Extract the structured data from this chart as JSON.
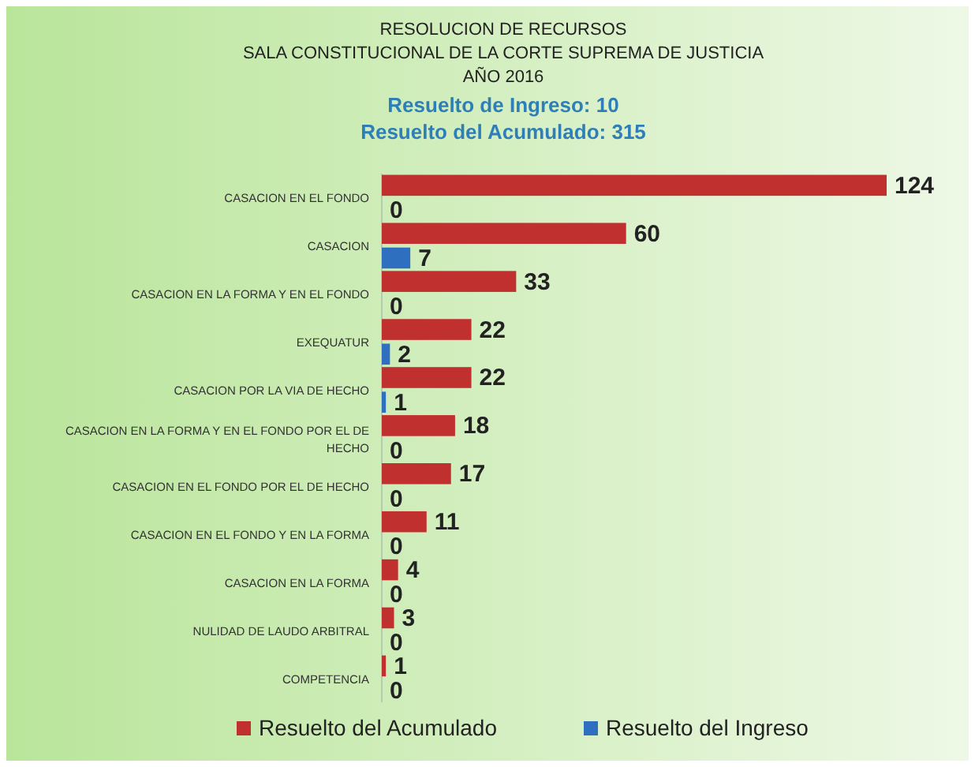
{
  "chart_data": {
    "type": "bar",
    "orientation": "horizontal",
    "title": "RESOLUCION DE RECURSOS\nSALA CONSTITUCIONAL DE LA CORTE SUPREMA DE JUSTICIA\nAÑO 2016",
    "subtitle": "Resuelto de Ingreso: 10\nResuelto del Acumulado: 315",
    "categories": [
      "CASACION EN EL FONDO",
      "CASACION",
      "CASACION EN LA FORMA Y EN EL FONDO",
      "EXEQUATUR",
      "CASACION POR LA VIA DE HECHO",
      "CASACION EN LA FORMA Y EN EL FONDO POR EL DE HECHO",
      "CASACION EN EL FONDO POR EL DE HECHO",
      "CASACION EN EL FONDO Y EN LA FORMA",
      "CASACION EN LA FORMA",
      "NULIDAD DE LAUDO ARBITRAL",
      "COMPETENCIA"
    ],
    "series": [
      {
        "name": "Resuelto del Acumulado",
        "color": "#c0302e",
        "values": [
          124,
          60,
          33,
          22,
          22,
          18,
          17,
          11,
          4,
          3,
          1
        ]
      },
      {
        "name": "Resuelto del Ingreso",
        "color": "#2e6fc0",
        "values": [
          0,
          7,
          0,
          2,
          1,
          0,
          0,
          0,
          0,
          0,
          0
        ]
      }
    ],
    "data_labels": true,
    "legend": "bottom"
  }
}
